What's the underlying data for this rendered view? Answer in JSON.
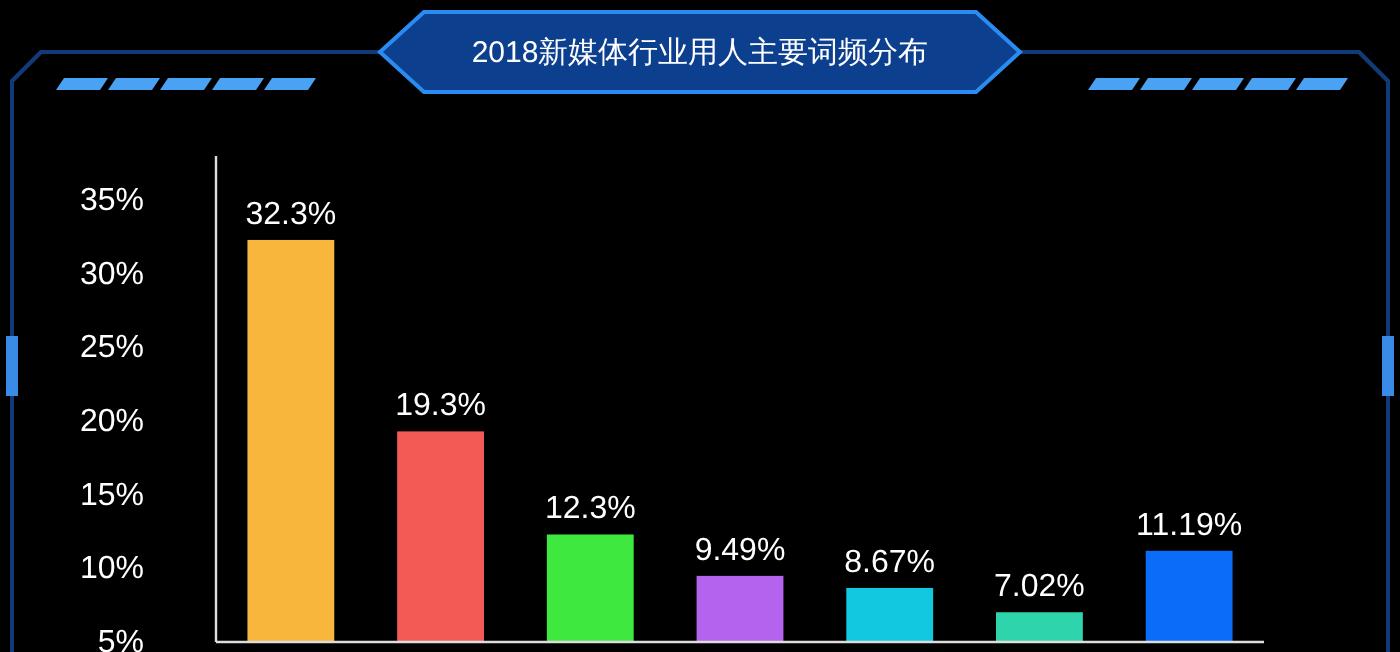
{
  "chart_data": {
    "type": "bar",
    "title": "2018新媒体行业用人主要词频分布",
    "categories": [
      null,
      null,
      null,
      null,
      null,
      null,
      null
    ],
    "values": [
      32.3,
      19.3,
      12.3,
      9.49,
      8.67,
      7.02,
      11.19
    ],
    "colors": [
      "#f8b63c",
      "#f45a55",
      "#3ee83e",
      "#b463ee",
      "#12c8e0",
      "#2ed4ac",
      "#0a6cf8"
    ],
    "value_labels": [
      "32.3%",
      "19.3%",
      "12.3%",
      "9.49%",
      "8.67%",
      "7.02%",
      "11.19%"
    ],
    "ylim": [
      5,
      38
    ],
    "yticks": [
      {
        "value": 5,
        "label": "5%"
      },
      {
        "value": 10,
        "label": "10%"
      },
      {
        "value": 15,
        "label": "15%"
      },
      {
        "value": 20,
        "label": "20%"
      },
      {
        "value": 25,
        "label": "25%"
      },
      {
        "value": 30,
        "label": "30%"
      },
      {
        "value": 35,
        "label": "35%"
      }
    ],
    "grid": false
  }
}
